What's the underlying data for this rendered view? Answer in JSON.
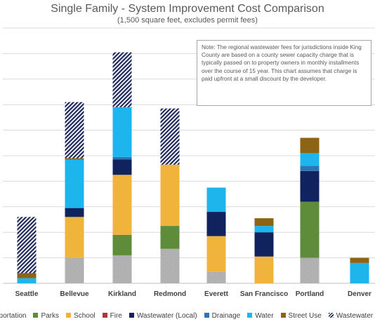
{
  "chart_data": {
    "type": "bar",
    "stacked": true,
    "title": "Single Family - System Improvement Cost Comparison",
    "subtitle": "(1,500 square feet, excludes permit fees)",
    "note": "Note: The regional wastewater fees for jurisdictions inside King County are based on a county sewer capacity charge that is typically passed on to property owners in monthly installments over the course of 15 year. This chart assumes that charge is paid upfront at a small discount by the developer.",
    "grid": true,
    "legend_position": "bottom",
    "categories": [
      "Seattle",
      "Bellevue",
      "Kirkland",
      "Redmond",
      "Everett",
      "San Francisco",
      "Portland",
      "Denver"
    ],
    "ylim": [
      0,
      10
    ],
    "series": [
      {
        "name": "Transportation",
        "color": "#a6a6a6",
        "pattern": "dots",
        "values": [
          0,
          1.0,
          1.1,
          1.35,
          0.45,
          0,
          1.0,
          0
        ]
      },
      {
        "name": "Parks",
        "color": "#5f8c3a",
        "values": [
          0,
          0,
          0.8,
          0.9,
          0,
          0,
          2.2,
          0
        ]
      },
      {
        "name": "School",
        "color": "#f0b43c",
        "values": [
          0,
          1.6,
          2.35,
          2.4,
          1.4,
          1.05,
          0,
          0
        ]
      },
      {
        "name": "Fire",
        "color": "#b5323a",
        "values": [
          0,
          0,
          0,
          0,
          0,
          0,
          0,
          0
        ]
      },
      {
        "name": "Wastewater (Local)",
        "color": "#10235e",
        "values": [
          0,
          0.35,
          0.6,
          0,
          0.95,
          0.95,
          1.2,
          0
        ]
      },
      {
        "name": "Drainage",
        "color": "#2e75b6",
        "values": [
          0,
          0,
          0.1,
          0,
          0,
          0,
          0.2,
          0
        ]
      },
      {
        "name": "Water",
        "color": "#1eb4ec",
        "values": [
          0.2,
          1.9,
          1.95,
          0,
          0.95,
          0.25,
          0.5,
          0.8
        ]
      },
      {
        "name": "Street Use",
        "color": "#8c6414",
        "values": [
          0.2,
          0.05,
          0,
          0,
          0,
          0.3,
          0.6,
          0.2
        ]
      },
      {
        "name": "Wastewater (Regional)",
        "color": "#1f2a5c",
        "pattern": "hatch",
        "values": [
          2.2,
          2.2,
          2.15,
          2.2,
          0,
          0,
          0,
          0
        ]
      }
    ]
  },
  "legend_items": [
    {
      "label": "nsportation",
      "color": "#a6a6a6"
    },
    {
      "label": "Parks",
      "color": "#5f8c3a"
    },
    {
      "label": "School",
      "color": "#f0b43c"
    },
    {
      "label": "Fire",
      "color": "#b5323a"
    },
    {
      "label": "Wastewater (Local)",
      "color": "#10235e"
    },
    {
      "label": "Drainage",
      "color": "#2e75b6"
    },
    {
      "label": "Water",
      "color": "#1eb4ec"
    },
    {
      "label": "Street Use",
      "color": "#8c6414"
    },
    {
      "label": "Wastewater (R",
      "color": "#1f2a5c",
      "pattern": "hatch"
    }
  ]
}
